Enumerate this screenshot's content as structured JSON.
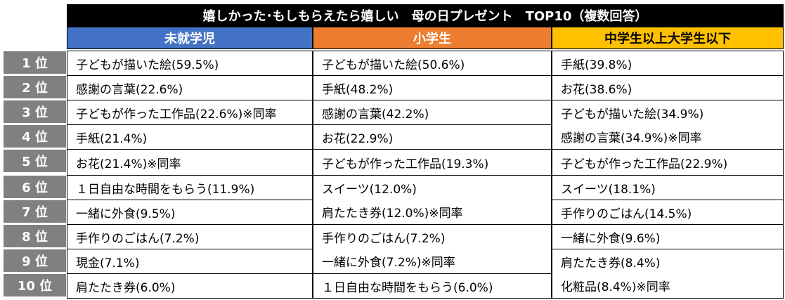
{
  "title": "嬉しかった･もしもらえたら嬉しい　母の日プレゼント　TOP10（複数回答）",
  "columns": {
    "c1": "未就学児",
    "c2": "小学生",
    "c3": "中学生以上大学生以下"
  },
  "ranks": [
    "1 位",
    "2 位",
    "3 位",
    "4 位",
    "5 位",
    "6 位",
    "7 位",
    "8 位",
    "9 位",
    "10 位"
  ],
  "col1": [
    "子どもが描いた絵(59.5%)",
    "感謝の言葉(22.6%)",
    "子どもが作った工作品(22.6%)※同率",
    "手紙(21.4%)",
    "お花(21.4%)※同率",
    "１日自由な時間をもらう(11.9%)",
    "一緒に外食(9.5%)",
    "手作りのごはん(7.2%)",
    "現金(7.1%)",
    "肩たたき券(6.0%)"
  ],
  "col2": {
    "r1": "子どもが描いた絵(50.6%)",
    "r2": "手紙(48.2%)",
    "r3": "感謝の言葉(42.2%)",
    "r4": "お花(22.9%)",
    "r5": "子どもが作った工作品(19.3%)",
    "r6": "スイーツ(12.0%)",
    "r7": "肩たたき券(12.0%)※同率",
    "r8": "手作りのごはん(7.2%)",
    "r9": "一緒に外食(7.2%)※同率",
    "r10": "１日自由な時間をもらう(6.0%)"
  },
  "col3": {
    "r1": "手紙(39.8%)",
    "r2": "お花(38.6%)",
    "r3": "子どもが描いた絵(34.9%)",
    "r4": "感謝の言葉(34.9%)※同率",
    "r5": "子どもが作った工作品(22.9%)",
    "r6": "スイーツ(18.1%)",
    "r7": "手作りのごはん(14.5%)",
    "r8": "一緒に外食(9.6%)",
    "r9": "肩たたき券(8.4%)",
    "r10": "化粧品(8.4%)※同率"
  }
}
